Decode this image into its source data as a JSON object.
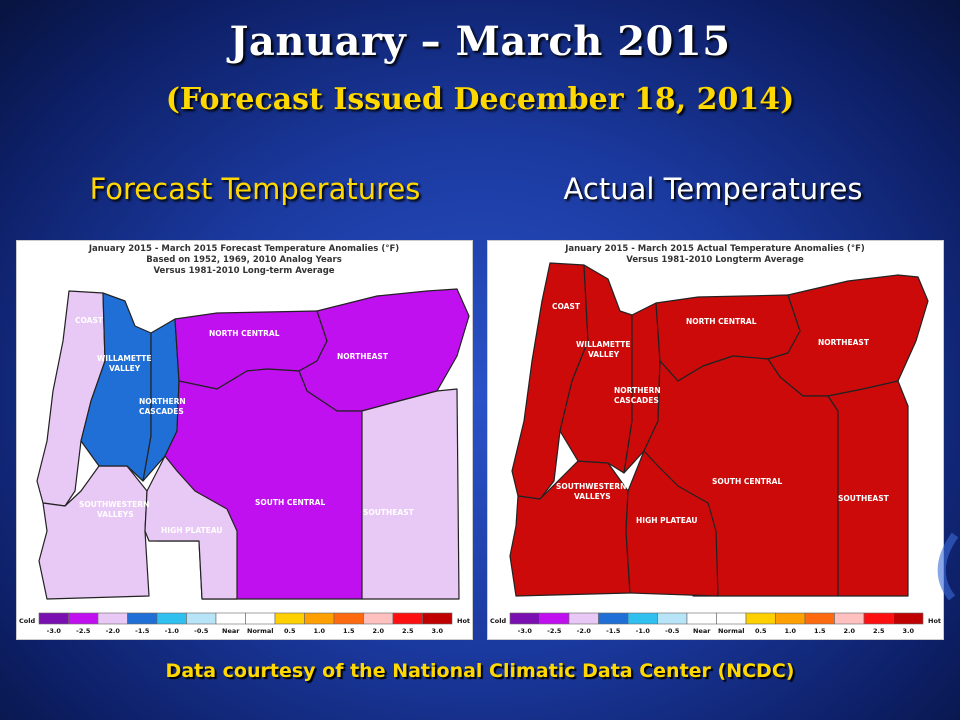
{
  "slide": {
    "title": "January – March 2015",
    "subtitle": "(Forecast Issued December 18, 2014)",
    "left_label": "Forecast Temperatures",
    "right_label": "Actual Temperatures",
    "credit": "Data courtesy of the National Climatic Data Center (NCDC)"
  },
  "forecast_map": {
    "header": [
      "January 2015 - March 2015 Forecast Temperature Anomalies (°F)",
      "Based on 1952, 1969, 2010 Analog Years",
      "Versus 1981-2010 Long-term Average"
    ],
    "regions": [
      {
        "name": "COAST",
        "anomaly": "-2.0",
        "color": "#e8c8f4"
      },
      {
        "name": "WILLAMETTE VALLEY",
        "anomaly": "-1.5",
        "color": "#1f6fd6"
      },
      {
        "name": "NORTHERN CASCADES",
        "anomaly": "-1.5",
        "color": "#1f6fd6"
      },
      {
        "name": "NORTH CENTRAL",
        "anomaly": "-2.5",
        "color": "#c010f0"
      },
      {
        "name": "NORTHEAST",
        "anomaly": "-2.5",
        "color": "#c010f0"
      },
      {
        "name": "SOUTH CENTRAL",
        "anomaly": "-2.5",
        "color": "#c010f0"
      },
      {
        "name": "SOUTHWESTERN VALLEYS",
        "anomaly": "-2.0",
        "color": "#e8c8f4"
      },
      {
        "name": "HIGH PLATEAU",
        "anomaly": "-2.0",
        "color": "#e8c8f4"
      },
      {
        "name": "SOUTHEAST",
        "anomaly": "-2.0",
        "color": "#e8c8f4"
      }
    ]
  },
  "actual_map": {
    "header": [
      "January 2015 - March 2015 Actual Temperature Anomalies (°F)",
      "Versus 1981-2010 Longterm Average"
    ],
    "regions": [
      {
        "name": "COAST",
        "anomaly": "3.0",
        "color": "#cc0a0a"
      },
      {
        "name": "WILLAMETTE VALLEY",
        "anomaly": "3.0",
        "color": "#cc0a0a"
      },
      {
        "name": "NORTHERN CASCADES",
        "anomaly": "3.0",
        "color": "#cc0a0a"
      },
      {
        "name": "NORTH CENTRAL",
        "anomaly": "3.0",
        "color": "#cc0a0a"
      },
      {
        "name": "NORTHEAST",
        "anomaly": "3.0",
        "color": "#cc0a0a"
      },
      {
        "name": "SOUTH CENTRAL",
        "anomaly": "3.0",
        "color": "#cc0a0a"
      },
      {
        "name": "SOUTHWESTERN VALLEYS",
        "anomaly": "3.0",
        "color": "#cc0a0a"
      },
      {
        "name": "HIGH PLATEAU",
        "anomaly": "3.0",
        "color": "#cc0a0a"
      },
      {
        "name": "SOUTHEAST",
        "anomaly": "3.0",
        "color": "#cc0a0a"
      }
    ]
  },
  "legend": {
    "cold_label": "Cold",
    "hot_label": "Hot",
    "ticks": [
      "-3.0",
      "-2.5",
      "-2.0",
      "-1.5",
      "-1.0",
      "-0.5",
      "Near",
      "Normal",
      "0.5",
      "1.0",
      "1.5",
      "2.0",
      "2.5",
      "3.0"
    ],
    "colors": [
      "#7a10b0",
      "#c010f0",
      "#e8c8f4",
      "#1f6fd6",
      "#30c0f0",
      "#b8e4f8",
      "#ffffff",
      "#ffffff",
      "#ffd000",
      "#ffa000",
      "#ff6a10",
      "#ffc0c0",
      "#ff1010",
      "#c00000"
    ]
  },
  "colors": {
    "title": "#ffffff",
    "subtitle": "#ffd800",
    "left_label": "#ffd800",
    "right_label": "#ffffff",
    "credit": "#ffd800",
    "background": "#1b3aa0"
  }
}
